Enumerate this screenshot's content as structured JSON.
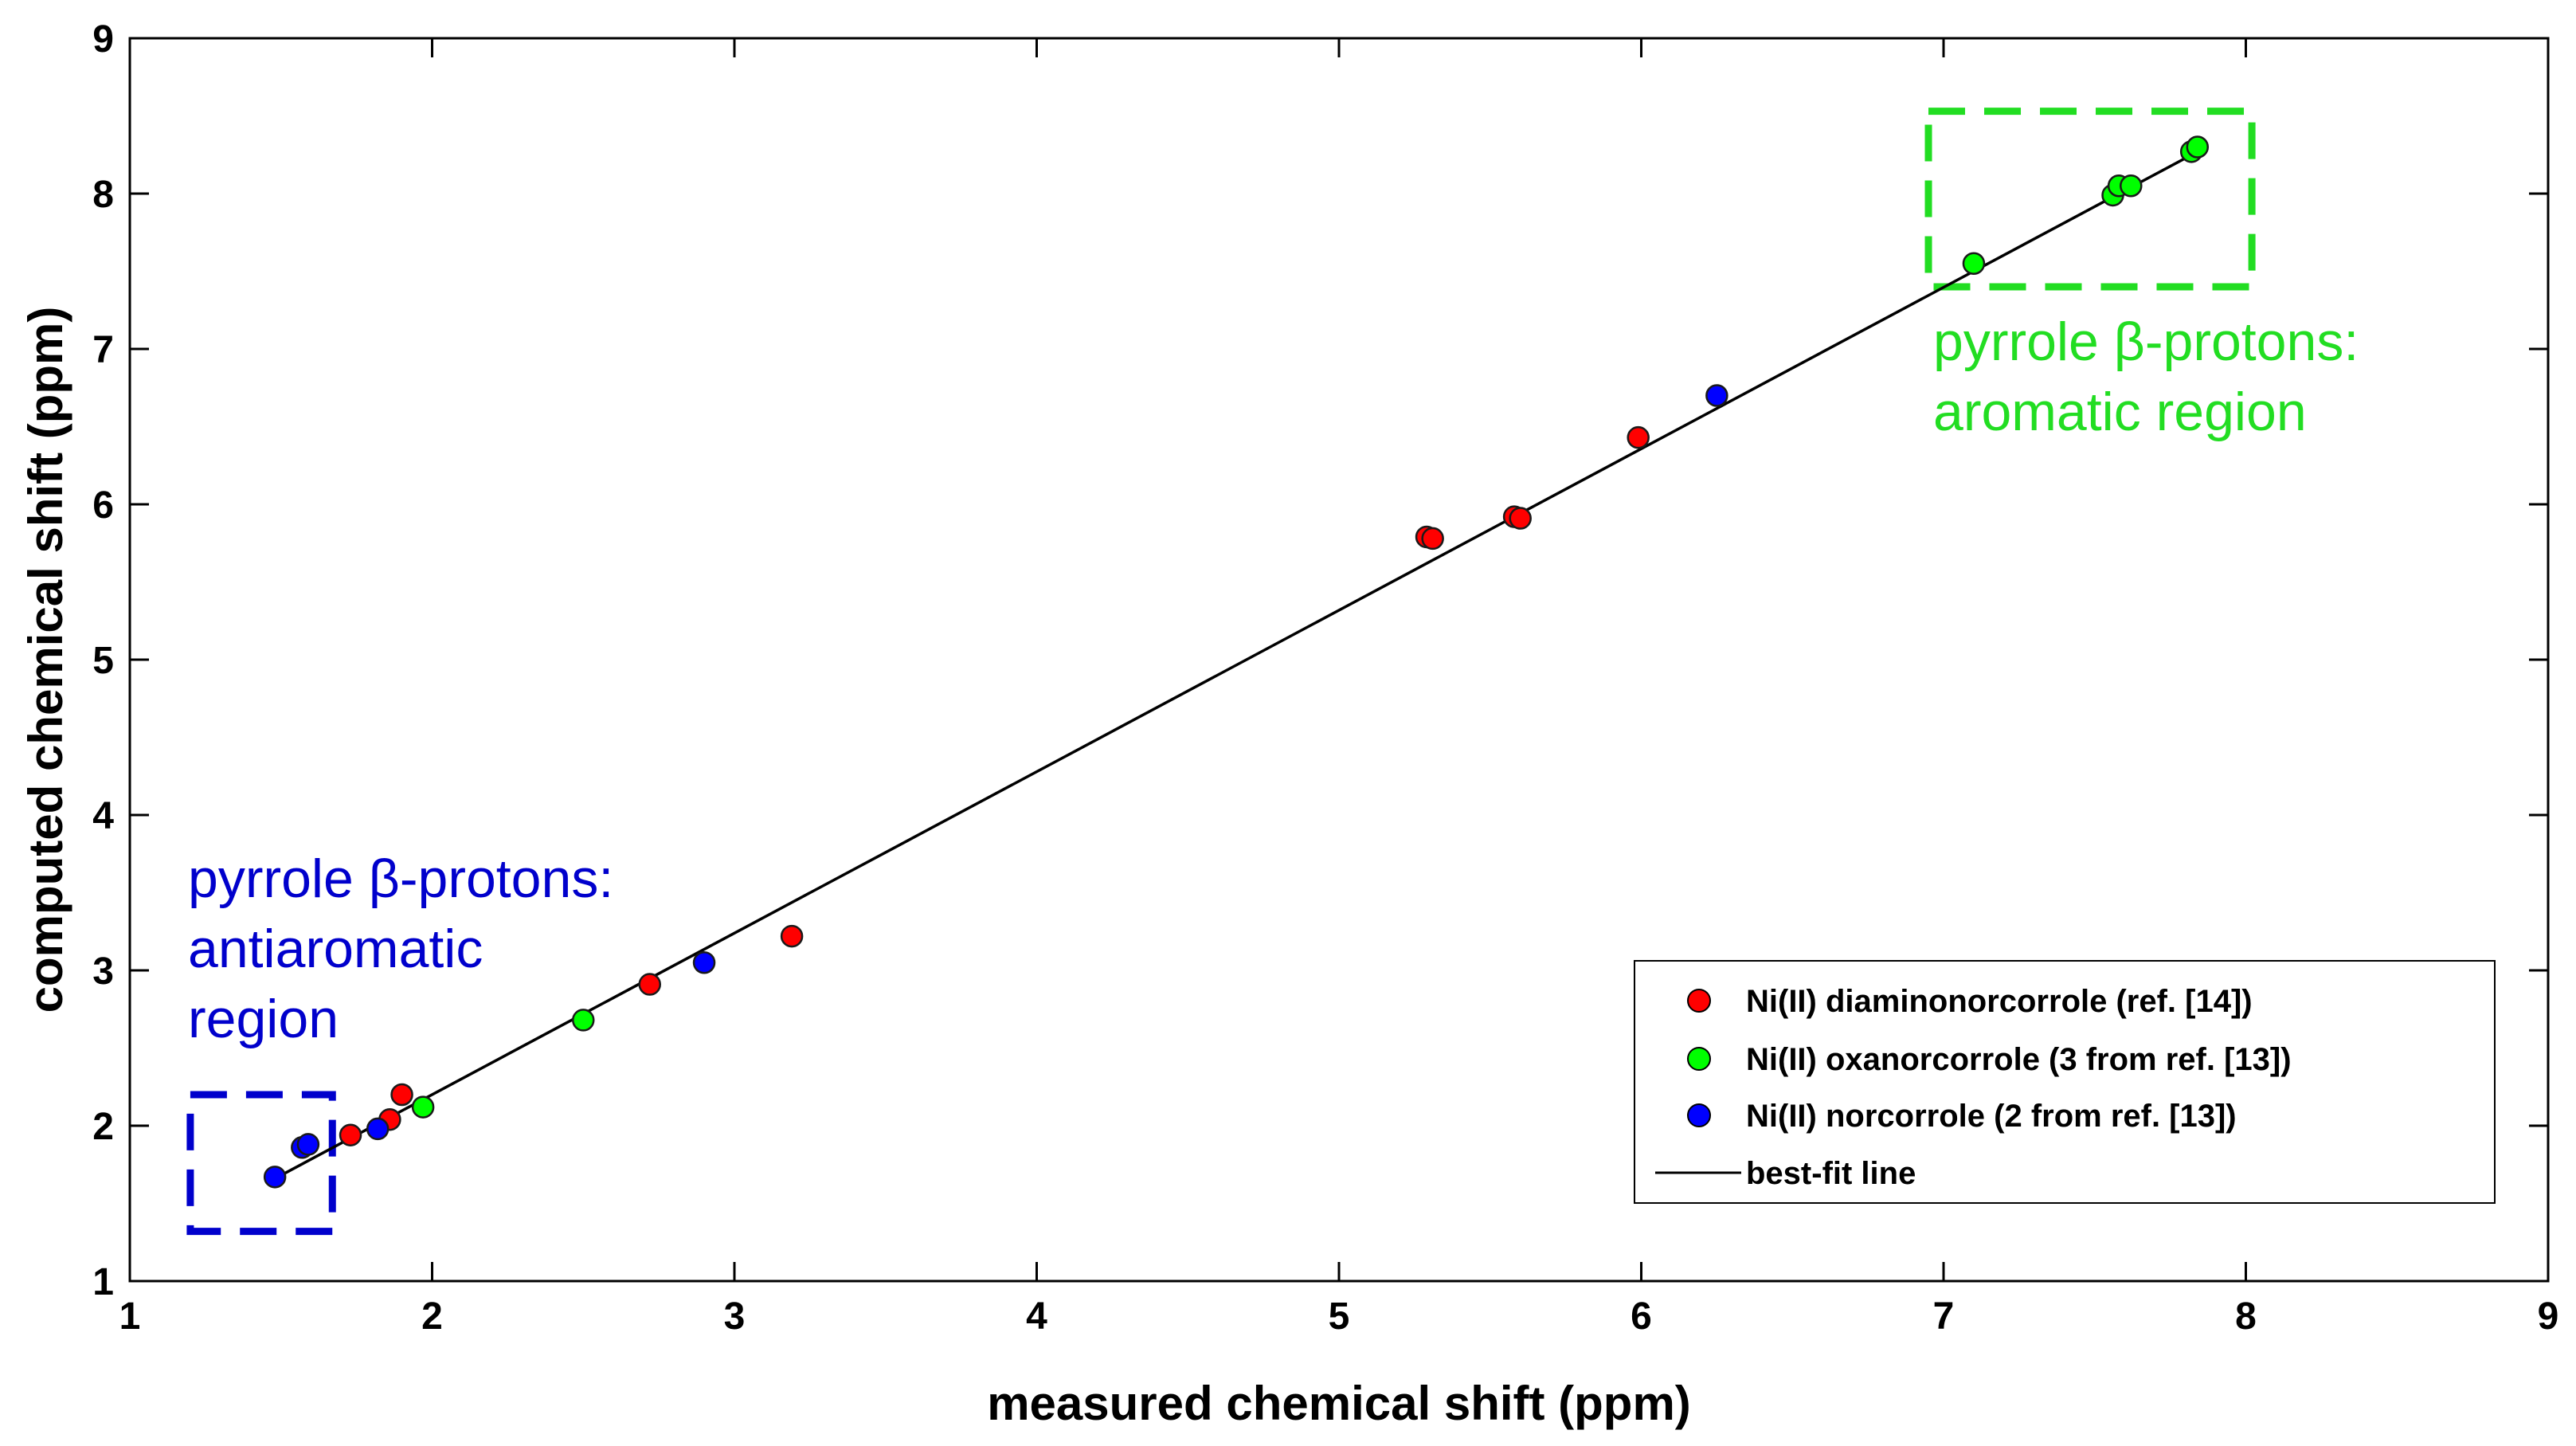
{
  "chart_data": {
    "type": "scatter",
    "title": "",
    "xlabel": "measured chemical shift (ppm)",
    "ylabel": "computed chemical shift (ppm)",
    "xlim": [
      1,
      9
    ],
    "ylim": [
      1,
      9
    ],
    "xticks": [
      "1",
      "2",
      "3",
      "4",
      "5",
      "6",
      "7",
      "8",
      "9"
    ],
    "yticks": [
      "1",
      "2",
      "3",
      "4",
      "5",
      "6",
      "7",
      "8",
      "9"
    ],
    "grid": false,
    "legend_position": "bottom-right",
    "series": [
      {
        "name": "Ni(II) diaminonorcorrole (ref. [14])",
        "color": "#ff0000",
        "points": [
          {
            "x": 1.73,
            "y": 1.94
          },
          {
            "x": 1.86,
            "y": 2.04
          },
          {
            "x": 1.9,
            "y": 2.2
          },
          {
            "x": 2.72,
            "y": 2.91
          },
          {
            "x": 3.19,
            "y": 3.22
          },
          {
            "x": 5.29,
            "y": 5.79
          },
          {
            "x": 5.31,
            "y": 5.78
          },
          {
            "x": 5.58,
            "y": 5.92
          },
          {
            "x": 5.6,
            "y": 5.91
          },
          {
            "x": 5.99,
            "y": 6.43
          }
        ]
      },
      {
        "name": "Ni(II) oxanorcorrole (3 from ref. [13])",
        "color": "#00ff00",
        "points": [
          {
            "x": 1.97,
            "y": 2.12
          },
          {
            "x": 2.5,
            "y": 2.68
          },
          {
            "x": 7.1,
            "y": 7.55
          },
          {
            "x": 7.56,
            "y": 7.99
          },
          {
            "x": 7.58,
            "y": 8.05
          },
          {
            "x": 7.62,
            "y": 8.05
          },
          {
            "x": 7.82,
            "y": 8.27
          },
          {
            "x": 7.84,
            "y": 8.3
          }
        ]
      },
      {
        "name": "Ni(II) norcorrole (2 from ref. [13])",
        "color": "#0000ff",
        "points": [
          {
            "x": 1.48,
            "y": 1.67
          },
          {
            "x": 1.57,
            "y": 1.86
          },
          {
            "x": 1.59,
            "y": 1.88
          },
          {
            "x": 1.82,
            "y": 1.98
          },
          {
            "x": 2.9,
            "y": 3.05
          },
          {
            "x": 6.25,
            "y": 6.7
          }
        ]
      }
    ],
    "fit_line": {
      "name": "best-fit line",
      "color": "#000000",
      "x": [
        1.48,
        7.85
      ],
      "y": [
        1.66,
        8.28
      ]
    },
    "annotations": [
      {
        "lines": [
          "pyrrole β-protons:",
          "aromatic region"
        ],
        "color": "#22dd22",
        "box": {
          "x0": 6.95,
          "x1": 8.02,
          "y0": 7.4,
          "y1": 8.53
        }
      },
      {
        "lines": [
          "pyrrole β-protons:",
          "antiaromatic",
          "region"
        ],
        "color": "#0000cc",
        "box": {
          "x0": 1.2,
          "x1": 1.67,
          "y0": 1.32,
          "y1": 2.2
        }
      }
    ]
  }
}
